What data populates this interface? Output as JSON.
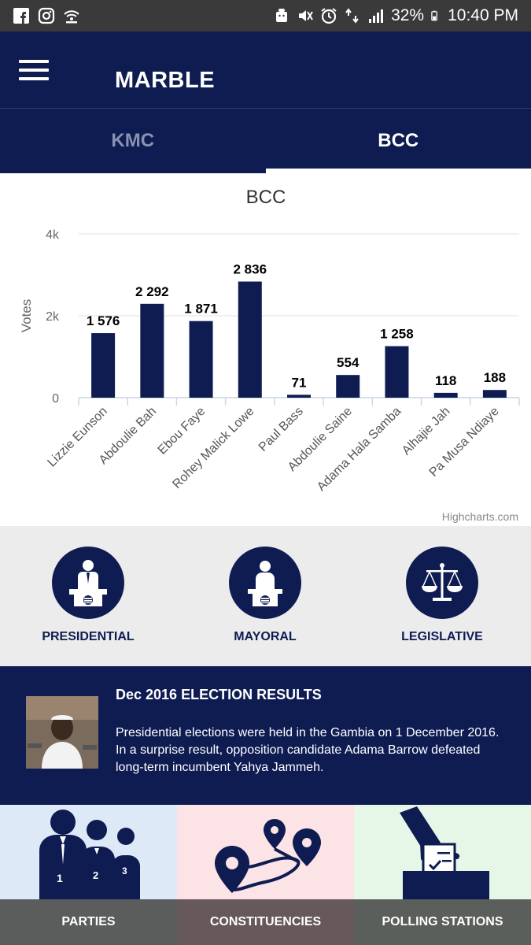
{
  "status_bar": {
    "battery": "32%",
    "time": "10:40 PM"
  },
  "app_bar": {
    "title": "MARBLE"
  },
  "tabs": [
    {
      "label": "KMC",
      "active": false
    },
    {
      "label": "BCC",
      "active": true
    }
  ],
  "chart_data": {
    "type": "bar",
    "title": "BCC",
    "ylabel": "Votes",
    "ylim": [
      0,
      4000
    ],
    "yticks": [
      "0",
      "2k",
      "4k"
    ],
    "categories": [
      "Lizzie Eunson",
      "Abdoulie Bah",
      "Ebou Faye",
      "Rohey Malick Lowe",
      "Paul Bass",
      "Abdoulie Saine",
      "Adama Hala Samba",
      "Alhajie Jah",
      "Pa Musa Ndiaye"
    ],
    "values": [
      1576,
      2292,
      1871,
      2836,
      71,
      554,
      1258,
      118,
      188
    ],
    "data_labels": [
      "1 576",
      "2 292",
      "1 871",
      "2 836",
      "71",
      "554",
      "1 258",
      "118",
      "188"
    ],
    "bar_color": "#0e1c52",
    "grid": true,
    "credits": "Highcharts.com"
  },
  "election_types": [
    {
      "label": "PRESIDENTIAL",
      "icon": "presidential-podium-icon"
    },
    {
      "label": "MAYORAL",
      "icon": "mayoral-podium-icon"
    },
    {
      "label": "LEGISLATIVE",
      "icon": "scales-icon"
    }
  ],
  "news": {
    "title": "Dec 2016 ELECTION RESULTS",
    "body": "Presidential elections were held in the Gambia on 1 December 2016. In a surprise result, opposition candidate Adama Barrow defeated long-term incumbent Yahya Jammeh."
  },
  "tiles": [
    {
      "label": "PARTIES",
      "icon": "people-icon"
    },
    {
      "label": "CONSTITUENCIES",
      "icon": "route-map-icon"
    },
    {
      "label": "POLLING STATIONS",
      "icon": "ballot-box-icon"
    }
  ],
  "colors": {
    "primary": "#0e1c52",
    "gray_bg": "#ececec"
  }
}
